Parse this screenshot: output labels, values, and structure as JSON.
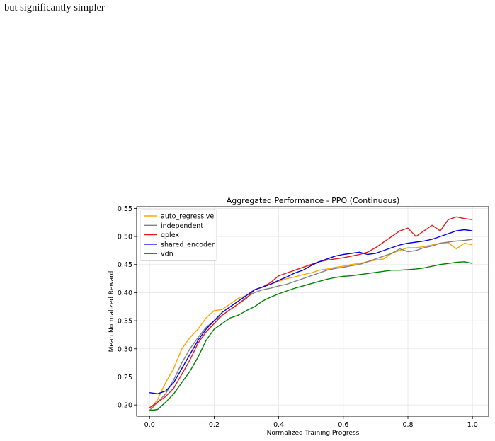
{
  "page": {
    "text_fragment": "but significantly simpler"
  },
  "chart_data": {
    "type": "line",
    "title": "Aggregated Performance - PPO (Continuous)",
    "xlabel": "Normalized Training Progress",
    "ylabel": "Mean Normalized Reward",
    "xlim": [
      -0.04,
      1.05
    ],
    "ylim": [
      0.18,
      0.553
    ],
    "xticks": [
      0.0,
      0.2,
      0.4,
      0.6,
      0.8,
      1.0
    ],
    "xtick_labels": [
      "0.0",
      "0.2",
      "0.4",
      "0.6",
      "0.8",
      "1.0"
    ],
    "yticks": [
      0.2,
      0.25,
      0.3,
      0.35,
      0.4,
      0.45,
      0.5,
      0.55
    ],
    "ytick_labels": [
      "0.20",
      "0.25",
      "0.30",
      "0.35",
      "0.40",
      "0.45",
      "0.50",
      "0.55"
    ],
    "grid": true,
    "legend_position": "top-left",
    "series": [
      {
        "name": "auto_regressive",
        "color": "#ffa500",
        "x": [
          0.0,
          0.025,
          0.05,
          0.075,
          0.1,
          0.125,
          0.15,
          0.175,
          0.2,
          0.225,
          0.25,
          0.275,
          0.3,
          0.325,
          0.35,
          0.375,
          0.4,
          0.425,
          0.45,
          0.475,
          0.5,
          0.525,
          0.55,
          0.575,
          0.6,
          0.625,
          0.65,
          0.675,
          0.7,
          0.725,
          0.75,
          0.775,
          0.8,
          0.825,
          0.85,
          0.875,
          0.9,
          0.925,
          0.95,
          0.975,
          1.0
        ],
        "y": [
          0.19,
          0.21,
          0.24,
          0.265,
          0.3,
          0.32,
          0.335,
          0.355,
          0.368,
          0.37,
          0.38,
          0.39,
          0.395,
          0.405,
          0.41,
          0.415,
          0.42,
          0.425,
          0.428,
          0.432,
          0.435,
          0.44,
          0.442,
          0.445,
          0.447,
          0.45,
          0.452,
          0.455,
          0.458,
          0.46,
          0.47,
          0.475,
          0.48,
          0.48,
          0.482,
          0.485,
          0.488,
          0.489,
          0.478,
          0.488,
          0.485
        ]
      },
      {
        "name": "independent",
        "color": "#808080",
        "x": [
          0.0,
          0.025,
          0.05,
          0.075,
          0.1,
          0.125,
          0.15,
          0.175,
          0.2,
          0.225,
          0.25,
          0.275,
          0.3,
          0.325,
          0.35,
          0.375,
          0.4,
          0.425,
          0.45,
          0.475,
          0.5,
          0.525,
          0.55,
          0.575,
          0.6,
          0.625,
          0.65,
          0.675,
          0.7,
          0.725,
          0.75,
          0.775,
          0.8,
          0.825,
          0.85,
          0.875,
          0.9,
          0.925,
          0.95,
          0.975,
          1.0
        ],
        "y": [
          0.19,
          0.205,
          0.22,
          0.245,
          0.275,
          0.3,
          0.32,
          0.338,
          0.35,
          0.36,
          0.37,
          0.38,
          0.392,
          0.4,
          0.405,
          0.408,
          0.412,
          0.415,
          0.42,
          0.425,
          0.43,
          0.435,
          0.44,
          0.443,
          0.445,
          0.448,
          0.45,
          0.455,
          0.46,
          0.465,
          0.47,
          0.478,
          0.473,
          0.475,
          0.48,
          0.483,
          0.488,
          0.49,
          0.492,
          0.493,
          0.495
        ]
      },
      {
        "name": "qplex",
        "color": "#e31a1c",
        "x": [
          0.0,
          0.025,
          0.05,
          0.075,
          0.1,
          0.125,
          0.15,
          0.175,
          0.2,
          0.225,
          0.25,
          0.275,
          0.3,
          0.325,
          0.35,
          0.375,
          0.4,
          0.425,
          0.45,
          0.475,
          0.5,
          0.525,
          0.55,
          0.575,
          0.6,
          0.625,
          0.65,
          0.675,
          0.7,
          0.725,
          0.75,
          0.775,
          0.8,
          0.825,
          0.85,
          0.875,
          0.9,
          0.925,
          0.95,
          0.975,
          1.0
        ],
        "y": [
          0.195,
          0.205,
          0.215,
          0.23,
          0.255,
          0.28,
          0.31,
          0.33,
          0.345,
          0.36,
          0.37,
          0.38,
          0.39,
          0.405,
          0.41,
          0.418,
          0.43,
          0.435,
          0.44,
          0.445,
          0.45,
          0.455,
          0.458,
          0.46,
          0.462,
          0.465,
          0.468,
          0.472,
          0.48,
          0.49,
          0.5,
          0.51,
          0.515,
          0.5,
          0.51,
          0.52,
          0.51,
          0.53,
          0.535,
          0.532,
          0.53
        ]
      },
      {
        "name": "shared_encoder",
        "color": "#0000e6",
        "x": [
          0.0,
          0.025,
          0.05,
          0.075,
          0.1,
          0.125,
          0.15,
          0.175,
          0.2,
          0.225,
          0.25,
          0.275,
          0.3,
          0.325,
          0.35,
          0.375,
          0.4,
          0.425,
          0.45,
          0.475,
          0.5,
          0.525,
          0.55,
          0.575,
          0.6,
          0.625,
          0.65,
          0.675,
          0.7,
          0.725,
          0.75,
          0.775,
          0.8,
          0.825,
          0.85,
          0.875,
          0.9,
          0.925,
          0.95,
          0.975,
          1.0
        ],
        "y": [
          0.222,
          0.22,
          0.225,
          0.24,
          0.265,
          0.29,
          0.315,
          0.335,
          0.35,
          0.365,
          0.375,
          0.385,
          0.395,
          0.405,
          0.41,
          0.415,
          0.422,
          0.428,
          0.435,
          0.44,
          0.448,
          0.455,
          0.46,
          0.465,
          0.468,
          0.47,
          0.472,
          0.468,
          0.47,
          0.475,
          0.48,
          0.485,
          0.488,
          0.49,
          0.492,
          0.495,
          0.5,
          0.505,
          0.51,
          0.512,
          0.51
        ]
      },
      {
        "name": "vdn",
        "color": "#008000",
        "x": [
          0.0,
          0.025,
          0.05,
          0.075,
          0.1,
          0.125,
          0.15,
          0.175,
          0.2,
          0.225,
          0.25,
          0.275,
          0.3,
          0.325,
          0.35,
          0.375,
          0.4,
          0.425,
          0.45,
          0.475,
          0.5,
          0.525,
          0.55,
          0.575,
          0.6,
          0.625,
          0.65,
          0.675,
          0.7,
          0.725,
          0.75,
          0.775,
          0.8,
          0.825,
          0.85,
          0.875,
          0.9,
          0.925,
          0.95,
          0.975,
          1.0
        ],
        "y": [
          0.19,
          0.192,
          0.205,
          0.22,
          0.24,
          0.26,
          0.285,
          0.315,
          0.335,
          0.345,
          0.355,
          0.36,
          0.368,
          0.375,
          0.385,
          0.392,
          0.398,
          0.403,
          0.408,
          0.412,
          0.416,
          0.42,
          0.424,
          0.427,
          0.429,
          0.43,
          0.432,
          0.434,
          0.436,
          0.438,
          0.44,
          0.44,
          0.441,
          0.442,
          0.444,
          0.447,
          0.45,
          0.452,
          0.454,
          0.455,
          0.452
        ]
      }
    ]
  }
}
